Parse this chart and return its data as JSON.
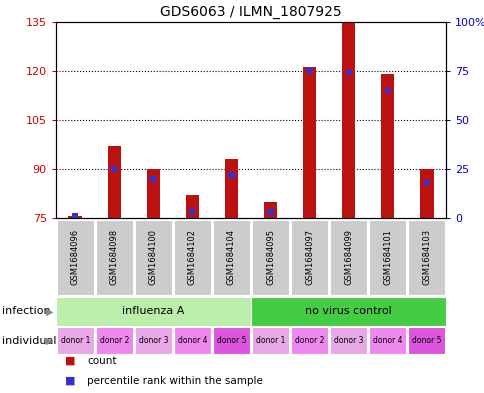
{
  "title": "GDS6063 / ILMN_1807925",
  "samples": [
    "GSM1684096",
    "GSM1684098",
    "GSM1684100",
    "GSM1684102",
    "GSM1684104",
    "GSM1684095",
    "GSM1684097",
    "GSM1684099",
    "GSM1684101",
    "GSM1684103"
  ],
  "counts": [
    75.5,
    97,
    90,
    82,
    93,
    80,
    121,
    135,
    119,
    90
  ],
  "percentile_ranks": [
    1,
    25,
    20,
    3,
    22,
    3,
    75,
    74,
    65,
    18
  ],
  "ylim": [
    75,
    135
  ],
  "yticks_left": [
    75,
    90,
    105,
    120,
    135
  ],
  "yticks_right": [
    0,
    25,
    50,
    75,
    100
  ],
  "bar_color": "#bb1111",
  "blue_color": "#3333cc",
  "infection_groups": [
    {
      "label": "influenza A",
      "start": 0,
      "end": 5,
      "color": "#bbeeaa"
    },
    {
      "label": "no virus control",
      "start": 5,
      "end": 10,
      "color": "#44cc44"
    }
  ],
  "individual_labels": [
    "donor 1",
    "donor 2",
    "donor 3",
    "donor 4",
    "donor 5",
    "donor 1",
    "donor 2",
    "donor 3",
    "donor 4",
    "donor 5"
  ],
  "individual_colors": [
    "#e8a8e8",
    "#ee88ee",
    "#e8a8e8",
    "#ee88ee",
    "#dd55dd",
    "#e8a8e8",
    "#ee88ee",
    "#e8a8e8",
    "#ee88ee",
    "#dd55dd"
  ],
  "bar_width": 0.35,
  "background_color": "#ffffff",
  "left_axis_color": "#cc0000",
  "right_axis_color": "#0000cc",
  "sample_box_color": "#cccccc",
  "grid_yticks": [
    90,
    105,
    120
  ]
}
